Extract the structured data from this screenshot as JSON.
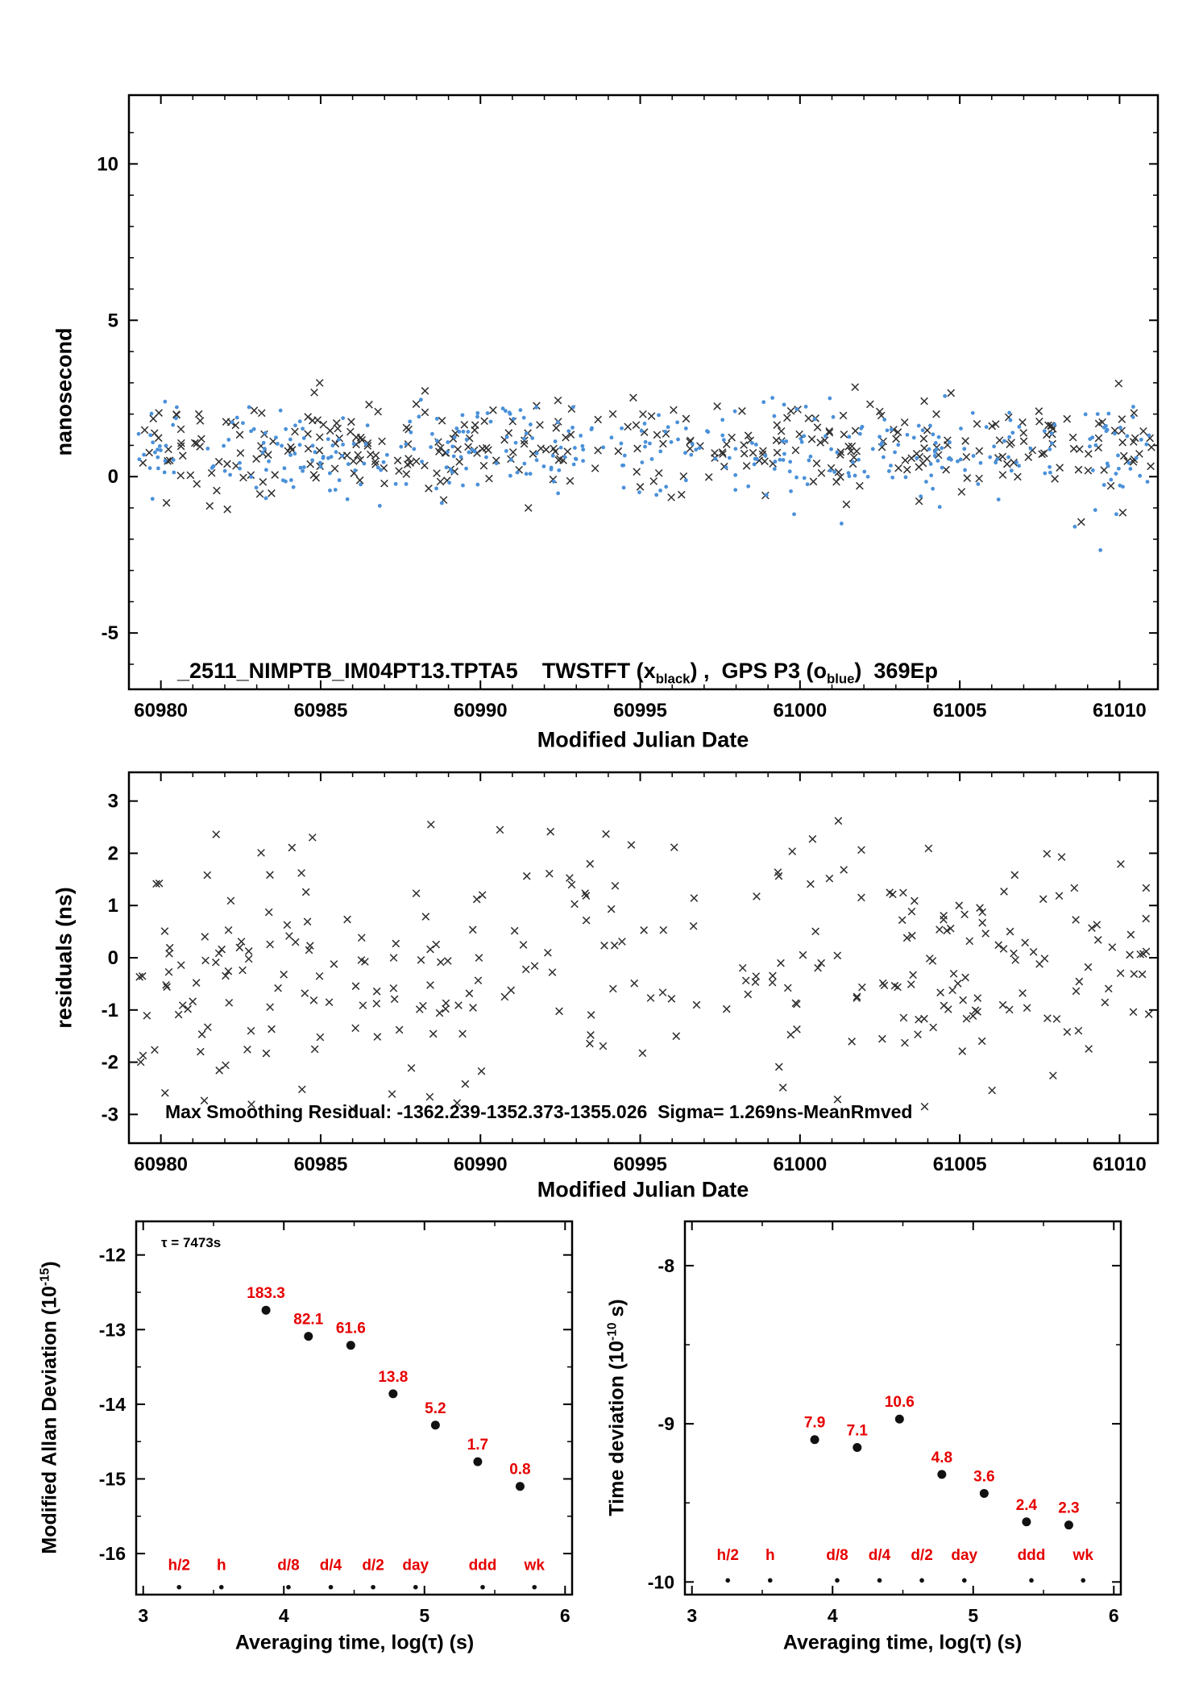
{
  "colors": {
    "axis": "#000000",
    "marker_black": "#2e2e2e",
    "gps_blue": "#4a90d9",
    "label_red": "#e60000",
    "point_black": "#111111"
  },
  "overlay": {
    "ylabel_top": "nanosecond",
    "xlabel_mjd_top": "Modified Julian Date",
    "ylabel_mid": "residuals (ns)",
    "xlabel_mjd_mid": "Modified Julian Date",
    "residual_annotation": "Max Smoothing Residual: -1362.239-1352.373-1355.026  Sigma= 1.269ns-MeanRmved",
    "top_title": {
      "part1": "_2511_NIMPTB_IM04PT13.TPTA5",
      "part2": "    TWSTFT (x",
      "sub2": "black",
      "part3": ") ,  GPS P3 (o",
      "sub4": "blue",
      "part5": ")  369Ep"
    },
    "ylabel_mdev_main": "Modified Allan Deviation (10",
    "ylabel_mdev_sup": "-15",
    "ylabel_mdev_close": ")",
    "ylabel_tdev_main": "Time deviation (10",
    "ylabel_tdev_sup": "-10",
    "ylabel_tdev_close": " s)",
    "xlabel_avg": "Averaging time, log(τ) (s)",
    "tau_annotation": "τ = 7473s"
  },
  "chart_data": [
    {
      "id": "main_scatter",
      "type": "scatter",
      "title": "_2511_NIMPTB_IM04PT13.TPTA5  TWSTFT (x black),  GPS P3 (o blue)  369Ep",
      "xlabel": "Modified Julian Date",
      "ylabel": "nanosecond",
      "xlim": [
        60979.0,
        61011.2
      ],
      "ylim": [
        -6.8,
        12.2
      ],
      "xticks": [
        60980,
        60985,
        60990,
        60995,
        61000,
        61005,
        61010
      ],
      "yticks": [
        -5,
        0,
        5,
        10
      ],
      "x_minor_step": 1,
      "y_minor_step": 1,
      "series": [
        {
          "name": "TWSTFT",
          "marker": "x",
          "color": "#2e2e2e",
          "n": 360,
          "seed": 20250101,
          "x_range": [
            60979.3,
            61011.0
          ],
          "mean": 0.95,
          "sd": 0.75,
          "clip": [
            -1.3,
            3.05
          ],
          "extra_points": [
            [
              61008.8,
              -1.45
            ],
            [
              61010.1,
              -1.15
            ],
            [
              60991.5,
              -1.0
            ]
          ]
        },
        {
          "name": "GPS P3",
          "marker": "dot",
          "color": "#4a90d9",
          "n": 400,
          "seed": 777001,
          "x_range": [
            60979.3,
            61011.0
          ],
          "mean": 0.8,
          "sd": 0.8,
          "clip": [
            -1.6,
            3.2
          ],
          "extra_points": [
            [
              61008.6,
              -1.6
            ],
            [
              61009.4,
              -2.35
            ],
            [
              61009.9,
              -1.2
            ],
            [
              61001.3,
              -1.5
            ]
          ]
        }
      ]
    },
    {
      "id": "residuals",
      "type": "scatter",
      "xlabel": "Modified Julian Date",
      "ylabel": "residuals (ns)",
      "annotation": "Max Smoothing Residual: -1362.239-1352.373-1355.026  Sigma= 1.269ns-MeanRmved",
      "xlim": [
        60979.0,
        61011.2
      ],
      "ylim": [
        -3.55,
        3.55
      ],
      "xticks": [
        60980,
        60985,
        60990,
        60995,
        61000,
        61005,
        61010
      ],
      "yticks": [
        -3,
        -2,
        -1,
        0,
        1,
        2,
        3
      ],
      "x_minor_step": 1,
      "y_minor_step": 0,
      "series": [
        {
          "name": "residuals",
          "marker": "x",
          "color": "#2e2e2e",
          "n": 300,
          "seed": 424242,
          "x_range": [
            60979.3,
            61011.0
          ],
          "mean": 0.0,
          "sd": 1.269,
          "clip": [
            -3.05,
            2.7
          ],
          "extra_points": [
            [
              61001.2,
              2.62
            ],
            [
              60986.0,
              -2.9
            ],
            [
              61003.9,
              -2.85
            ]
          ]
        }
      ]
    },
    {
      "id": "mdev",
      "type": "scatter",
      "xlabel": "Averaging time, log(τ) (s)",
      "ylabel": "Modified Allan Deviation (10^-15)",
      "annotation": "τ = 7473s",
      "xlim": [
        2.95,
        6.05
      ],
      "ylim": [
        -16.55,
        -11.55
      ],
      "xticks": [
        3,
        4,
        5,
        6
      ],
      "yticks": [
        -16,
        -15,
        -14,
        -13,
        -12
      ],
      "x_minor_step": 0.5,
      "y_minor_step": 0.5,
      "points": {
        "x": [
          3.873,
          4.175,
          4.476,
          4.777,
          5.078,
          5.379,
          5.68
        ],
        "y": [
          -12.74,
          -13.09,
          -13.21,
          -13.86,
          -14.28,
          -14.77,
          -15.1
        ],
        "labels": [
          "183.3",
          "82.1",
          "61.6",
          "13.8",
          "5.2",
          "1.7",
          "0.8"
        ]
      },
      "tau_row": {
        "labels": [
          "h/2",
          "h",
          "d/8",
          "d/4",
          "d/2",
          "day",
          "ddd",
          "wk"
        ],
        "x": [
          3.255,
          3.556,
          4.033,
          4.334,
          4.635,
          4.937,
          5.414,
          5.782
        ],
        "marker_y": -16.45,
        "label_y": -16.22
      }
    },
    {
      "id": "tdev",
      "type": "scatter",
      "xlabel": "Averaging time, log(τ) (s)",
      "ylabel": "Time deviation (10^-10 s)",
      "xlim": [
        2.95,
        6.05
      ],
      "ylim": [
        -10.08,
        -7.72
      ],
      "xticks": [
        3,
        4,
        5,
        6
      ],
      "yticks": [
        -10,
        -9,
        -8
      ],
      "x_minor_step": 0.5,
      "y_minor_step": 0.5,
      "points": {
        "x": [
          3.873,
          4.175,
          4.476,
          4.777,
          5.078,
          5.379,
          5.68
        ],
        "y": [
          -9.1,
          -9.15,
          -8.97,
          -9.32,
          -9.44,
          -9.62,
          -9.64
        ],
        "labels": [
          "7.9",
          "7.1",
          "10.6",
          "4.8",
          "3.6",
          "2.4",
          "2.3"
        ]
      },
      "tau_row": {
        "labels": [
          "h/2",
          "h",
          "d/8",
          "d/4",
          "d/2",
          "day",
          "ddd",
          "wk"
        ],
        "x": [
          3.255,
          3.556,
          4.033,
          4.334,
          4.635,
          4.937,
          5.414,
          5.782
        ],
        "marker_y": -9.99,
        "label_y": -9.86
      }
    }
  ]
}
